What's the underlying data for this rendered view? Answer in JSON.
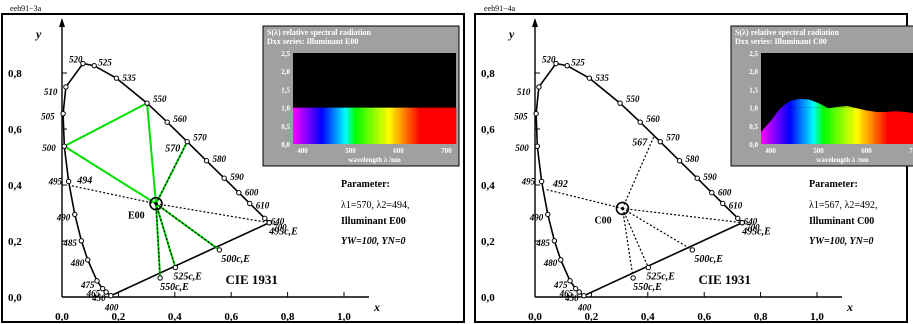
{
  "page": {
    "top_labels": [
      "eeh91−3a",
      "eeh91−4a"
    ]
  },
  "colors": {
    "frame": "#000000",
    "radiance_lines": "#00e000",
    "inset_bg": "#ffffff",
    "inset_header_bg": "#a0a0a0",
    "inset_plot_bg": "#a0a0a0",
    "inset_dark": "#000000"
  },
  "chart_data": [
    {
      "type": "scatter",
      "title": "CIE 1931",
      "xlabel": "x",
      "ylabel": "y",
      "xlim": [
        0.0,
        1.0
      ],
      "ylim": [
        0.0,
        0.9
      ],
      "x_ticks": [
        "0,0",
        "0,2",
        "0,4",
        "0,6",
        "0,8",
        "1,0"
      ],
      "y_ticks": [
        "0,0",
        "0,2",
        "0,4",
        "0,6",
        "0,8"
      ],
      "grid": false,
      "spectral_locus_wavelengths": [
        400,
        450,
        465,
        475,
        480,
        485,
        490,
        495,
        500,
        505,
        510,
        520,
        525,
        535,
        550,
        560,
        570,
        580,
        590,
        600,
        610,
        640,
        700
      ],
      "spectral_locus_points": [
        [
          0.1733,
          0.0048
        ],
        [
          0.1566,
          0.0177
        ],
        [
          0.144,
          0.0297
        ],
        [
          0.1241,
          0.0578
        ],
        [
          0.0913,
          0.1327
        ],
        [
          0.0687,
          0.2007
        ],
        [
          0.0454,
          0.295
        ],
        [
          0.0235,
          0.4127
        ],
        [
          0.0082,
          0.5384
        ],
        [
          0.0039,
          0.6548
        ],
        [
          0.0139,
          0.7502
        ],
        [
          0.0743,
          0.8338
        ],
        [
          0.1142,
          0.8262
        ],
        [
          0.1929,
          0.7816
        ],
        [
          0.3016,
          0.6923
        ],
        [
          0.3731,
          0.6245
        ],
        [
          0.4441,
          0.5547
        ],
        [
          0.5125,
          0.4866
        ],
        [
          0.5752,
          0.4242
        ],
        [
          0.627,
          0.3725
        ],
        [
          0.6658,
          0.334
        ],
        [
          0.719,
          0.2809
        ],
        [
          0.7347,
          0.2653
        ]
      ],
      "white_point": {
        "label": "E00",
        "x": 0.3333,
        "y": 0.3333
      },
      "parameter": {
        "heading": "Parameter:",
        "lambda1": 570,
        "lambda2": 494,
        "illuminant": "Illuminant E00",
        "line1": "λ1=570, λ2=494,",
        "yw": "YW=100, YN=0"
      },
      "dominant_lines": [
        {
          "label": "570",
          "x": 0.4441,
          "y": 0.5547
        },
        {
          "label": "494",
          "x": 0.0258,
          "y": 0.399
        }
      ],
      "radiance_boundary_points": [
        [
          0.0082,
          0.5384
        ],
        [
          0.3016,
          0.6923
        ],
        [
          0.4441,
          0.5547
        ]
      ],
      "complementary_points": [
        {
          "label": "495c,E",
          "x": 0.7347,
          "y": 0.2653
        },
        {
          "label": "500c,E",
          "x": 0.558,
          "y": 0.168
        },
        {
          "label": "525c,E",
          "x": 0.402,
          "y": 0.105
        },
        {
          "label": "550c,E",
          "x": 0.348,
          "y": 0.068
        }
      ],
      "inset": {
        "title_line1": "S(λ) relative spectral radiation",
        "title_line2": "Dxx series: Illuminant E00",
        "x_label": "wavelength λ /nm",
        "x_ticks": [
          "400",
          "500",
          "600",
          "700"
        ],
        "y_ticks": [
          "0,0",
          "0,5",
          "1,0",
          "1,5",
          "2,0",
          "2,5"
        ],
        "ylim": [
          0.0,
          2.5
        ],
        "xlim": [
          380,
          720
        ],
        "spectrum_wavelengths": [
          380,
          420,
          460,
          500,
          540,
          580,
          620,
          660,
          700,
          720
        ],
        "spectrum_values": [
          1.0,
          1.0,
          1.0,
          1.0,
          1.0,
          1.0,
          1.0,
          1.0,
          1.0,
          1.0
        ]
      }
    },
    {
      "type": "scatter",
      "title": "CIE 1931",
      "xlabel": "x",
      "ylabel": "y",
      "xlim": [
        0.0,
        1.0
      ],
      "ylim": [
        0.0,
        0.9
      ],
      "x_ticks": [
        "0,0",
        "0,2",
        "0,4",
        "0,6",
        "0,8",
        "1,0"
      ],
      "y_ticks": [
        "0,0",
        "0,2",
        "0,4",
        "0,6",
        "0,8"
      ],
      "grid": false,
      "spectral_locus_wavelengths": [
        400,
        450,
        465,
        475,
        480,
        485,
        490,
        495,
        500,
        505,
        510,
        520,
        525,
        535,
        550,
        560,
        570,
        580,
        590,
        600,
        610,
        640,
        700
      ],
      "spectral_locus_points": [
        [
          0.1733,
          0.0048
        ],
        [
          0.1566,
          0.0177
        ],
        [
          0.144,
          0.0297
        ],
        [
          0.1241,
          0.0578
        ],
        [
          0.0913,
          0.1327
        ],
        [
          0.0687,
          0.2007
        ],
        [
          0.0454,
          0.295
        ],
        [
          0.0235,
          0.4127
        ],
        [
          0.0082,
          0.5384
        ],
        [
          0.0039,
          0.6548
        ],
        [
          0.0139,
          0.7502
        ],
        [
          0.0743,
          0.8338
        ],
        [
          0.1142,
          0.8262
        ],
        [
          0.1929,
          0.7816
        ],
        [
          0.3016,
          0.6923
        ],
        [
          0.3731,
          0.6245
        ],
        [
          0.4441,
          0.5547
        ],
        [
          0.5125,
          0.4866
        ],
        [
          0.5752,
          0.4242
        ],
        [
          0.627,
          0.3725
        ],
        [
          0.6658,
          0.334
        ],
        [
          0.719,
          0.2809
        ],
        [
          0.7347,
          0.2653
        ]
      ],
      "white_point": {
        "label": "C00",
        "x": 0.3101,
        "y": 0.3162
      },
      "parameter": {
        "heading": "Parameter:",
        "lambda1": 567,
        "lambda2": 492,
        "illuminant": "Illuminant C00",
        "line1": "λ1=567, λ2=492,",
        "yw": "YW=100, YN=0"
      },
      "dominant_lines": [
        {
          "label": "567",
          "x": 0.423,
          "y": 0.576
        },
        {
          "label": "492",
          "x": 0.035,
          "y": 0.385
        }
      ],
      "complementary_points": [
        {
          "label": "495c,E",
          "x": 0.7347,
          "y": 0.2653
        },
        {
          "label": "500c,E",
          "x": 0.558,
          "y": 0.168
        },
        {
          "label": "525c,E",
          "x": 0.402,
          "y": 0.105
        },
        {
          "label": "550c,E",
          "x": 0.348,
          "y": 0.068
        }
      ],
      "inset": {
        "title_line1": "S(λ) relative spectral radiation",
        "title_line2": "Dxx series: Illuminant C00",
        "x_label": "wavelength λ /nm",
        "x_ticks": [
          "400",
          "500",
          "600",
          "700"
        ],
        "y_ticks": [
          "0,0",
          "0,5",
          "1,0",
          "1,5",
          "2,0",
          "2,5"
        ],
        "ylim": [
          0.0,
          2.5
        ],
        "xlim": [
          380,
          720
        ],
        "spectrum_wavelengths": [
          380,
          400,
          420,
          440,
          460,
          480,
          500,
          520,
          540,
          560,
          580,
          600,
          620,
          640,
          660,
          680,
          700,
          720
        ],
        "spectrum_values": [
          0.33,
          0.63,
          0.98,
          1.18,
          1.24,
          1.22,
          1.12,
          0.98,
          1.02,
          1.04,
          0.98,
          0.92,
          0.88,
          0.88,
          0.9,
          0.88,
          0.84,
          0.82
        ]
      }
    }
  ]
}
